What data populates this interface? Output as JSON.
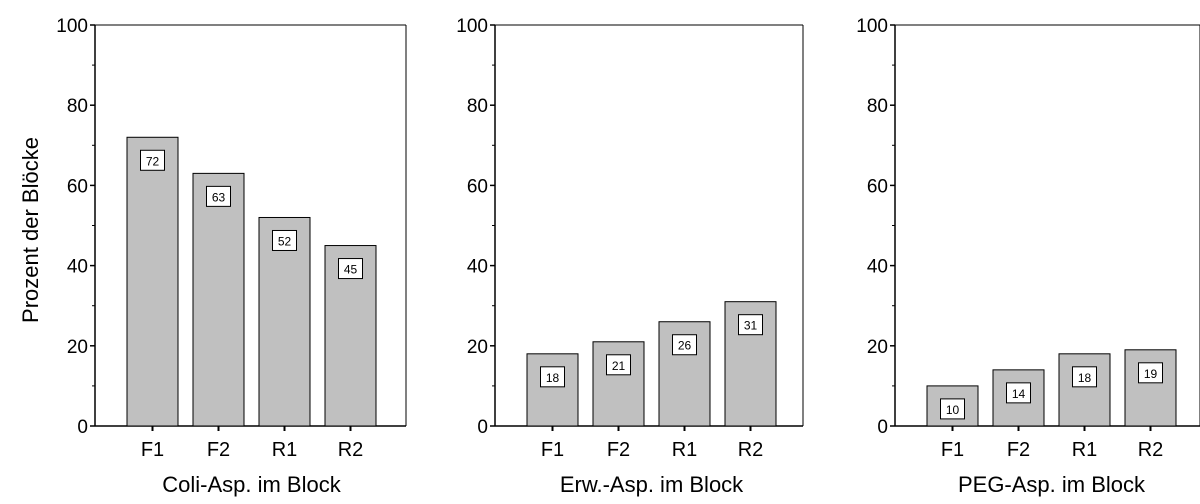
{
  "chart_data": [
    {
      "type": "bar",
      "categories": [
        "F1",
        "F2",
        "R1",
        "R2"
      ],
      "values": [
        72,
        63,
        52,
        45
      ],
      "data_labels": [
        "72",
        "63",
        "52",
        "45"
      ],
      "xlabel": "Coli-Asp. im Block",
      "ylabel": "Prozent der Blöcke",
      "ylim": [
        0,
        100
      ],
      "yticks": [
        0,
        20,
        40,
        60,
        80,
        100
      ],
      "ytick_labels": [
        "0",
        "20",
        "40",
        "60",
        "80",
        "100"
      ],
      "grid": false
    },
    {
      "type": "bar",
      "categories": [
        "F1",
        "F2",
        "R1",
        "R2"
      ],
      "values": [
        18,
        21,
        26,
        31
      ],
      "data_labels": [
        "18",
        "21",
        "26",
        "31"
      ],
      "xlabel": "Erw.-Asp. im Block",
      "ylabel": "",
      "ylim": [
        0,
        100
      ],
      "yticks": [
        0,
        20,
        40,
        60,
        80,
        100
      ],
      "ytick_labels": [
        "0",
        "20",
        "40",
        "60",
        "80",
        "100"
      ],
      "grid": false
    },
    {
      "type": "bar",
      "categories": [
        "F1",
        "F2",
        "R1",
        "R2"
      ],
      "values": [
        10,
        14,
        18,
        19
      ],
      "data_labels": [
        "10",
        "14",
        "18",
        "19"
      ],
      "xlabel": "PEG-Asp. im Block",
      "ylabel": "",
      "ylim": [
        0,
        100
      ],
      "yticks": [
        0,
        20,
        40,
        60,
        80,
        100
      ],
      "ytick_labels": [
        "0",
        "20",
        "40",
        "60",
        "80",
        "100"
      ],
      "grid": false
    }
  ],
  "colors": {
    "bar_fill": "#c0c0c0",
    "bar_stroke": "#000000",
    "axis": "#000000",
    "label_box": "#ffffff"
  }
}
